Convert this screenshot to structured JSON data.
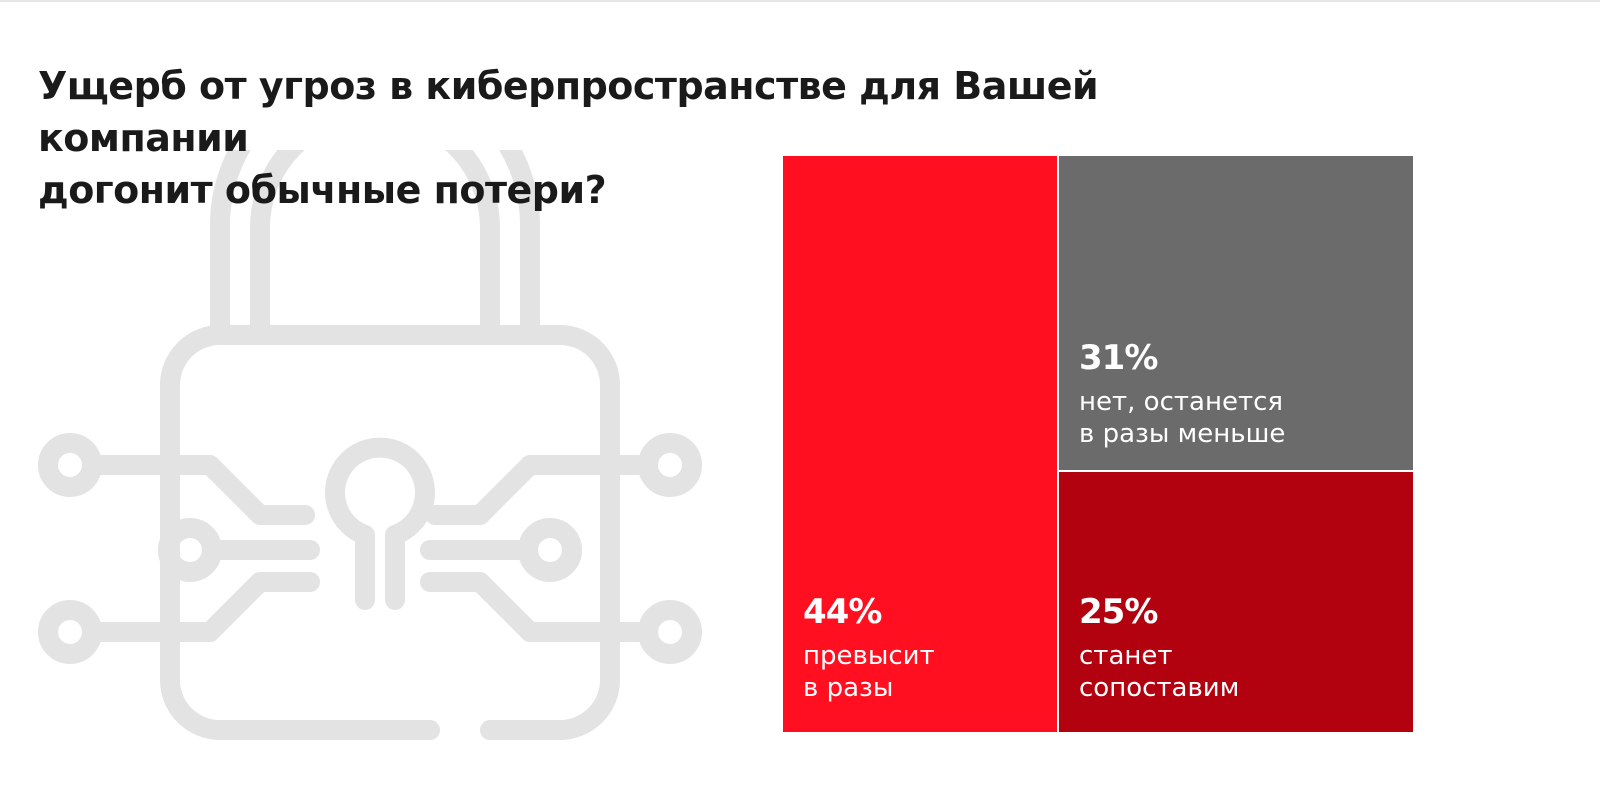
{
  "title_lines": [
    "Ущерб от угроз в киберпространстве для Вашей компании",
    "догонит обычные потери?"
  ],
  "background_icon": "padlock-circuit-icon",
  "colors": {
    "background": "#ffffff",
    "icon": "#e3e3e3",
    "red": "#ff0f1f",
    "gray": "#6b6b6b",
    "dark_red": "#b3020f"
  },
  "chart_data": {
    "type": "treemap",
    "title": "Ущерб от угроз в киберпространстве для Вашей компании догонит обычные потери?",
    "unit": "%",
    "items": [
      {
        "pct_label": "44%",
        "value": 44,
        "label": "превысит\nв разы",
        "color": "#ff0f1f"
      },
      {
        "pct_label": "31%",
        "value": 31,
        "label": "нет, останется\nв разы меньше",
        "color": "#6b6b6b"
      },
      {
        "pct_label": "25%",
        "value": 25,
        "label": "станет\nсопоставим",
        "color": "#b3020f"
      }
    ]
  }
}
